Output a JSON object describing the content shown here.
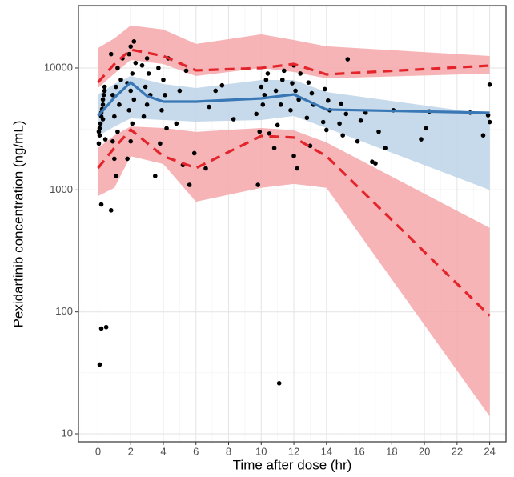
{
  "chart_data": {
    "type": "scatter",
    "x_label": "Time after dose (hr)",
    "y_label": "Pexidartinib concentration (ng/mL)",
    "xlim": [
      -1.2,
      25
    ],
    "ylim": [
      8.6,
      32500
    ],
    "xticks": [
      0,
      2,
      4,
      6,
      8,
      10,
      12,
      14,
      16,
      18,
      20,
      22,
      24
    ],
    "yticks": [
      10,
      100,
      1000,
      10000
    ],
    "log_y": true,
    "grid": true,
    "minor_grid": true,
    "series": [
      {
        "type": "area",
        "color": "#f4a7aa",
        "x": [
          0,
          1,
          2,
          4,
          6,
          10,
          12,
          14,
          24
        ],
        "lower": [
          6850,
          9000,
          11630,
          10780,
          8600,
          10000,
          9270,
          8220,
          9000
        ],
        "upper": [
          14600,
          17500,
          22300,
          20700,
          15750,
          18880,
          16970,
          15050,
          12550
        ]
      },
      {
        "type": "area",
        "color": "#f4a7aa",
        "x": [
          0,
          1,
          2,
          4,
          6,
          10,
          12,
          14,
          24
        ],
        "lower": [
          890,
          1040,
          1890,
          1630,
          800,
          1040,
          1120,
          1040,
          13.9
        ],
        "upper": [
          2210,
          2800,
          3310,
          3220,
          2990,
          3220,
          3080,
          2450,
          488
        ]
      },
      {
        "type": "area",
        "color": "#bcd3e9",
        "x": [
          0,
          1,
          2,
          4,
          6,
          10,
          12,
          14,
          24
        ],
        "lower": [
          2770,
          3300,
          3860,
          3740,
          3630,
          3740,
          4040,
          3220,
          1000
        ],
        "upper": [
          6070,
          7400,
          8600,
          7390,
          6850,
          7970,
          7970,
          6350,
          4160
        ]
      },
      {
        "type": "scatter",
        "color": "#000000",
        "x": [
          0.05,
          0.1,
          0.1,
          0.15,
          0.2,
          0.2,
          0.25,
          0.3,
          0.3,
          0.35,
          0.4,
          0.4,
          0.45,
          0.1,
          0.2,
          0.05,
          0.2,
          0.3,
          0.5,
          0.8,
          1.1,
          1.0,
          0.9,
          1.2,
          1.0,
          1.3,
          0.9,
          1.1,
          1.4,
          1.2,
          1.5,
          0.8,
          1.8,
          2.0,
          2.1,
          1.9,
          2.2,
          2.0,
          1.8,
          2.1,
          2.3,
          1.9,
          2.0,
          2.2,
          2.8,
          3.0,
          3.2,
          2.9,
          3.1,
          2.7,
          3.0,
          3.5,
          3.8,
          4.2,
          3.9,
          4.1,
          4.0,
          3.7,
          4.3,
          5.6,
          5.2,
          4.8,
          5.0,
          5.4,
          5.9,
          6.6,
          6.8,
          7.2,
          7.6,
          8.3,
          9.8,
          9.9,
          10.1,
          10.2,
          10.0,
          10.3,
          10.4,
          9.7,
          10.5,
          11.1,
          10.8,
          11.0,
          11.2,
          10.9,
          11.3,
          11.4,
          12.2,
          12.0,
          11.8,
          12.3,
          12.1,
          11.9,
          12.4,
          12.0,
          13.0,
          12.8,
          13.2,
          13.1,
          12.9,
          14.0,
          13.8,
          14.2,
          14.1,
          13.9,
          15.0,
          14.8,
          15.2,
          14.9,
          15.3,
          15.9,
          16.1,
          16.4,
          16.8,
          17.0,
          17.2,
          17.6,
          18.1,
          19.8,
          20.1,
          20.3,
          22.8,
          24.0,
          24.0,
          23.6,
          23.9
        ],
        "values": [
          2400,
          2800,
          3200,
          3500,
          4000,
          4300,
          4600,
          5000,
          5500,
          6000,
          6500,
          7000,
          2600,
          37,
          73,
          3000,
          760,
          3800,
          75,
          680,
          1300,
          1800,
          2500,
          3000,
          4000,
          5000,
          6000,
          7000,
          8000,
          10000,
          12000,
          13000,
          1800,
          2500,
          3500,
          4500,
          5500,
          6500,
          7500,
          9000,
          11000,
          13000,
          15000,
          16500,
          4000,
          5000,
          6000,
          7000,
          9000,
          10500,
          12000,
          1300,
          2400,
          3200,
          4500,
          6000,
          8000,
          10000,
          12000,
          1100,
          1600,
          3500,
          6500,
          9500,
          2000,
          1500,
          4800,
          6500,
          7200,
          3800,
          1100,
          3000,
          5000,
          6000,
          7000,
          8000,
          9000,
          4200,
          2900,
          26,
          2200,
          3400,
          5000,
          6500,
          8000,
          9500,
          1500,
          1900,
          4500,
          5500,
          6500,
          7500,
          9000,
          10500,
          2300,
          3900,
          5000,
          6200,
          7600,
          3100,
          3600,
          4500,
          5400,
          6700,
          2800,
          3500,
          4200,
          5100,
          11800,
          2500,
          3700,
          4300,
          1700,
          1650,
          3000,
          2200,
          4500,
          2600,
          3200,
          4400,
          4300,
          7300,
          3600,
          2800,
          4100
        ]
      },
      {
        "type": "line",
        "color": "#e3242b",
        "dash": true,
        "x": [
          0,
          1,
          2,
          4,
          6,
          10,
          12,
          14,
          24
        ],
        "values": [
          7620,
          10780,
          14150,
          12550,
          9560,
          10000,
          10780,
          8860,
          10460
        ]
      },
      {
        "type": "line",
        "color": "#e3242b",
        "dash": true,
        "x": [
          0,
          1,
          2,
          4,
          6,
          10,
          12,
          14,
          24
        ],
        "values": [
          1510,
          2210,
          3120,
          1890,
          1510,
          2770,
          2690,
          1890,
          93
        ]
      },
      {
        "type": "line",
        "color": "#3a78b5",
        "dash": false,
        "x": [
          0,
          1,
          2,
          3,
          4,
          6,
          10,
          12,
          14,
          24
        ],
        "values": [
          4040,
          5710,
          7620,
          5890,
          5300,
          5300,
          5630,
          6070,
          4560,
          4290
        ]
      }
    ]
  }
}
